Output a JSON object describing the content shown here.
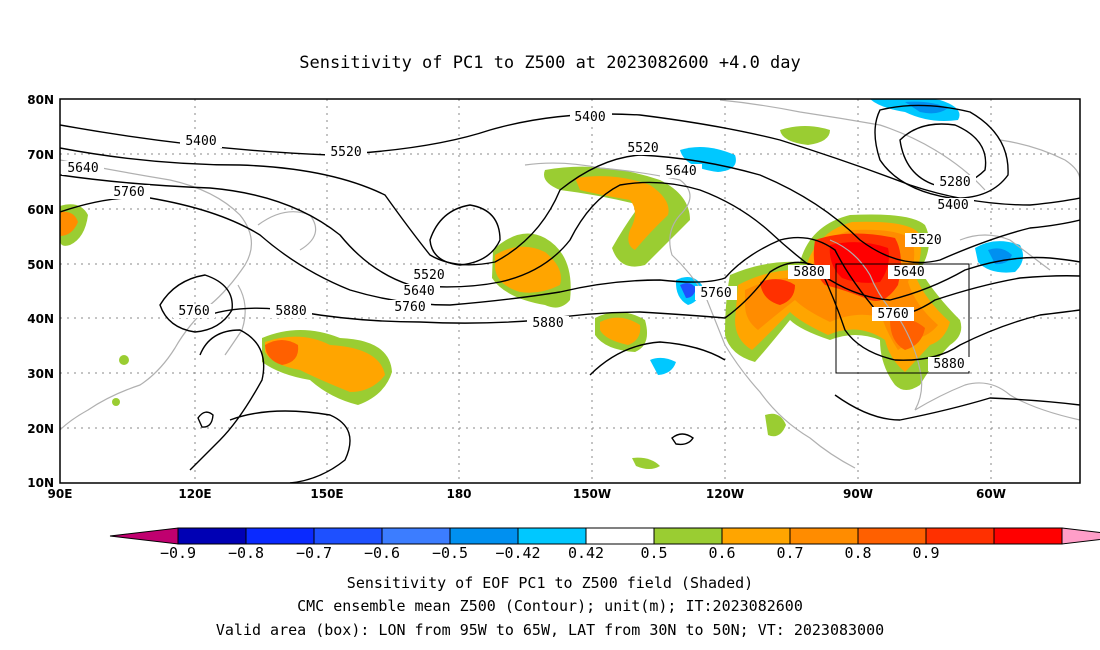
{
  "title": "Sensitivity of PC1 to Z500 at 2023082600 +4.0 day",
  "lat_labels": [
    "80N",
    "70N",
    "60N",
    "50N",
    "40N",
    "30N",
    "20N",
    "10N"
  ],
  "lon_labels": [
    "90E",
    "120E",
    "150E",
    "180",
    "150W",
    "120W",
    "90W",
    "60W"
  ],
  "contour_labels": [
    {
      "text": "5400"
    },
    {
      "text": "5400"
    },
    {
      "text": "5520"
    },
    {
      "text": "5520"
    },
    {
      "text": "5640"
    },
    {
      "text": "5640"
    },
    {
      "text": "5760"
    },
    {
      "text": "5760"
    },
    {
      "text": "5880"
    },
    {
      "text": "5880"
    },
    {
      "text": "5520"
    },
    {
      "text": "5640"
    },
    {
      "text": "5760"
    },
    {
      "text": "5880"
    },
    {
      "text": "5760"
    },
    {
      "text": "5880"
    },
    {
      "text": "5520"
    },
    {
      "text": "5640"
    },
    {
      "text": "5760"
    },
    {
      "text": "5880"
    },
    {
      "text": "5280"
    },
    {
      "text": "5400"
    }
  ],
  "colorbar": {
    "colors": [
      "#c0006f",
      "#0000b4",
      "#0a2aff",
      "#1e50ff",
      "#3c7dff",
      "#0090f0",
      "#00c8ff",
      "#ffffff",
      "#9acd32",
      "#ffa500",
      "#ff8c00",
      "#ff6000",
      "#ff3000",
      "#ff0000",
      "#ff9ec8"
    ],
    "tick_labels": [
      "−0.9",
      "−0.8",
      "−0.7",
      "−0.6",
      "−0.5",
      "−0.42",
      "0.42",
      "0.5",
      "0.6",
      "0.7",
      "0.8",
      "0.9"
    ]
  },
  "captions": [
    "Sensitivity of EOF PC1 to Z500 field (Shaded)",
    "CMC ensemble mean Z500 (Contour); unit(m); IT:2023082600",
    "Valid area (box): LON from 95W to 65W, LAT from 30N to 50N; VT: 2023083000"
  ]
}
